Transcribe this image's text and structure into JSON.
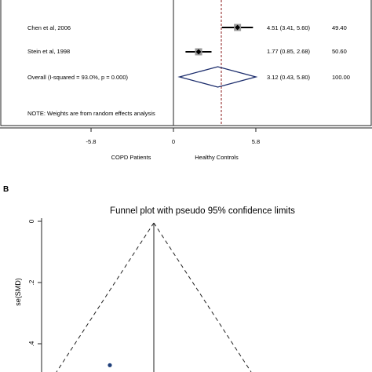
{
  "chart_data": [
    {
      "type": "forest",
      "studies": [
        {
          "label": "Chen et al, 2006",
          "estimate": 4.51,
          "ci": [
            3.41,
            5.6
          ],
          "ci_text": "4.51 (3.41, 5.60)",
          "weight": "49.40"
        },
        {
          "label": "Stein et al, 1998",
          "estimate": 1.77,
          "ci": [
            0.85,
            2.68
          ],
          "ci_text": "1.77 (0.85, 2.68)",
          "weight": "50.60"
        }
      ],
      "overall": {
        "label": "Overall  (I-squared = 93.0%, p = 0.000)",
        "estimate": 3.12,
        "ci": [
          0.43,
          5.8
        ],
        "ci_text": "3.12 (0.43, 5.80)",
        "weight": "100.00"
      },
      "note": "NOTE: Weights are from random effects analysis",
      "xticks": [
        "-5.8",
        "0",
        "5.8"
      ],
      "xlim": [
        -5.8,
        5.8
      ],
      "left_label": "COPD Patients",
      "right_label": "Healthy Controls"
    },
    {
      "type": "scatter",
      "panel_label": "B",
      "title": "Funnel plot with pseudo 95% confidence limits",
      "ylabel": "se(SMD)",
      "yticks": [
        "0",
        ".2",
        ".4"
      ],
      "y_reversed": true,
      "center_smd": 3.12,
      "points": [
        {
          "smd": 1.77,
          "se": 0.47
        }
      ]
    }
  ]
}
